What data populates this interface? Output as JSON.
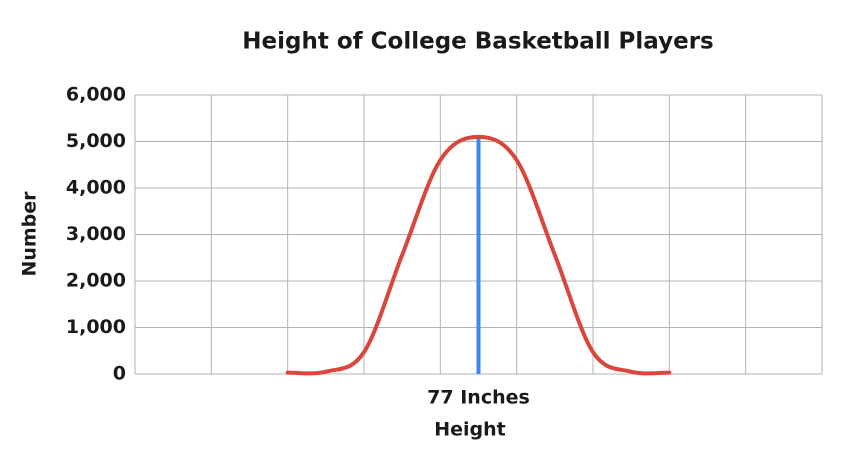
{
  "chart_data": {
    "type": "line",
    "title": "Height of College Basketball Players",
    "x_label": "Height",
    "y_label": "Number",
    "categories": [
      null,
      null,
      null,
      null,
      null,
      null,
      null,
      null,
      null,
      "77 Inches",
      null,
      null,
      null,
      null,
      null,
      null,
      null,
      null,
      null
    ],
    "series": [
      {
        "color": "#d9463b",
        "values": [
          null,
          null,
          null,
          null,
          30,
          50,
          470,
          2560,
          4600,
          5100,
          4600,
          2560,
          470,
          50,
          30,
          null,
          null,
          null,
          null
        ]
      }
    ],
    "reference_line": {
      "value": 5100,
      "color": "#3c87f0"
    },
    "ylim": [
      0,
      6000
    ],
    "yticks": [
      0,
      {
        "value": 1000,
        "label": "1,000"
      },
      {
        "value": 2000,
        "label": "2,000"
      },
      {
        "value": 3000,
        "label": "3,000"
      },
      {
        "value": 4000,
        "label": "4,000"
      },
      {
        "value": 5000,
        "label": "5,000"
      },
      {
        "value": 6000,
        "label": "6,000"
      }
    ],
    "grid": true
  }
}
